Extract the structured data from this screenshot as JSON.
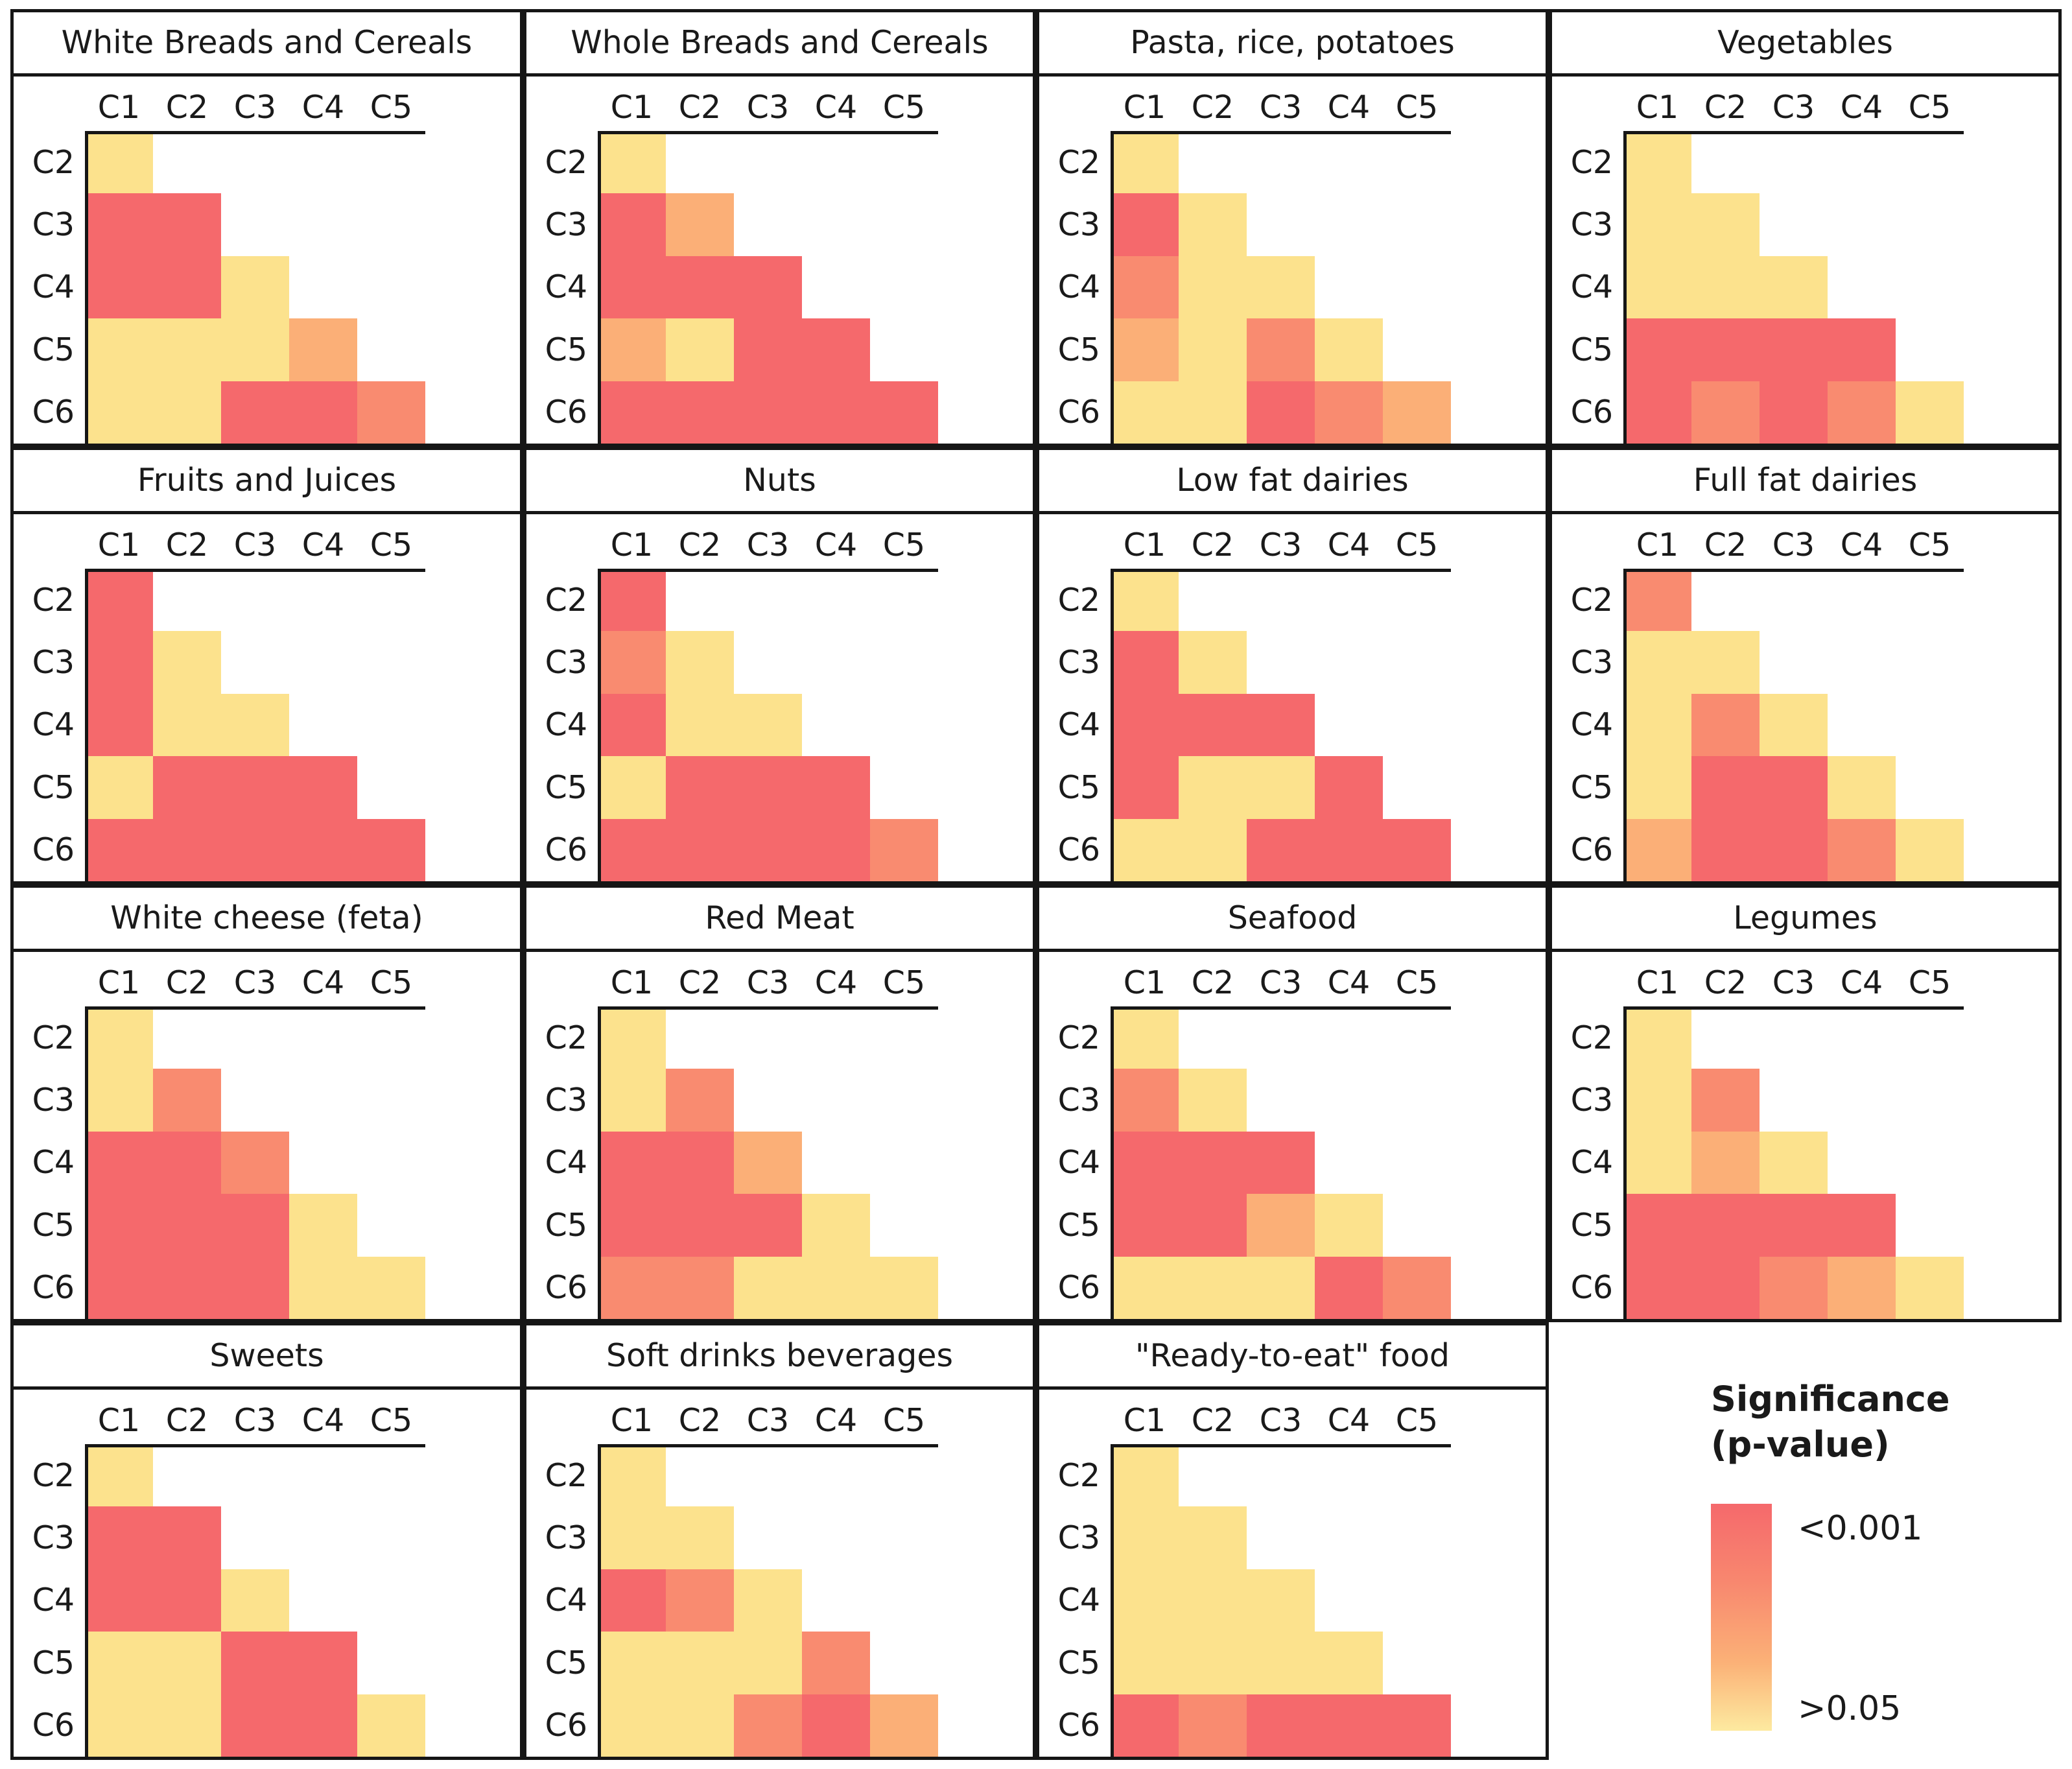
{
  "palette": {
    "r": "#f5696c",
    "s": "#f98b70",
    "o": "#fbaf77",
    "y": "#fce28d"
  },
  "legend": {
    "title_line1": "Significance",
    "title_line2": "(p-value)",
    "top_label": "<0.001",
    "bottom_label": ">0.05",
    "gradient_top_color": "#f5696c",
    "gradient_bottom_color": "#fdeaa0"
  },
  "chart_data": {
    "type": "heatmap",
    "layout": "4x4 grid of lower-triangular pairwise comparison matrices, legend in last slot",
    "columns": [
      "C1",
      "C2",
      "C3",
      "C4",
      "C5"
    ],
    "rows": [
      "C2",
      "C3",
      "C4",
      "C5",
      "C6"
    ],
    "value_legend": {
      "r": "p < 0.001 (strongest significance, red)",
      "s": "intermediate p, closer to 0.001 (salmon)",
      "o": "intermediate p, closer to 0.05 (orange)",
      "y": "p > 0.05 (not significant, pale yellow)"
    },
    "panels": [
      {
        "title": "White Breads and Cereals",
        "cells": [
          [
            "y"
          ],
          [
            "r",
            "r"
          ],
          [
            "r",
            "r",
            "y"
          ],
          [
            "y",
            "y",
            "y",
            "o"
          ],
          [
            "y",
            "y",
            "r",
            "r",
            "s"
          ]
        ]
      },
      {
        "title": "Whole Breads and Cereals",
        "cells": [
          [
            "y"
          ],
          [
            "r",
            "o"
          ],
          [
            "r",
            "r",
            "r"
          ],
          [
            "o",
            "y",
            "r",
            "r"
          ],
          [
            "r",
            "r",
            "r",
            "r",
            "r"
          ]
        ]
      },
      {
        "title": "Pasta, rice, potatoes",
        "cells": [
          [
            "y"
          ],
          [
            "r",
            "y"
          ],
          [
            "s",
            "y",
            "y"
          ],
          [
            "o",
            "y",
            "s",
            "y"
          ],
          [
            "y",
            "y",
            "r",
            "s",
            "o"
          ]
        ]
      },
      {
        "title": "Vegetables",
        "cells": [
          [
            "y"
          ],
          [
            "y",
            "y"
          ],
          [
            "y",
            "y",
            "y"
          ],
          [
            "r",
            "r",
            "r",
            "r"
          ],
          [
            "r",
            "s",
            "r",
            "s",
            "y"
          ]
        ]
      },
      {
        "title": "Fruits and Juices",
        "cells": [
          [
            "r"
          ],
          [
            "r",
            "y"
          ],
          [
            "r",
            "y",
            "y"
          ],
          [
            "y",
            "r",
            "r",
            "r"
          ],
          [
            "r",
            "r",
            "r",
            "r",
            "r"
          ]
        ]
      },
      {
        "title": "Nuts",
        "cells": [
          [
            "r"
          ],
          [
            "s",
            "y"
          ],
          [
            "r",
            "y",
            "y"
          ],
          [
            "y",
            "r",
            "r",
            "r"
          ],
          [
            "r",
            "r",
            "r",
            "r",
            "s"
          ]
        ]
      },
      {
        "title": "Low fat dairies",
        "cells": [
          [
            "y"
          ],
          [
            "r",
            "y"
          ],
          [
            "r",
            "r",
            "r"
          ],
          [
            "r",
            "y",
            "y",
            "r"
          ],
          [
            "y",
            "y",
            "r",
            "r",
            "r"
          ]
        ]
      },
      {
        "title": "Full fat dairies",
        "cells": [
          [
            "s"
          ],
          [
            "y",
            "y"
          ],
          [
            "y",
            "s",
            "y"
          ],
          [
            "y",
            "r",
            "r",
            "y"
          ],
          [
            "o",
            "r",
            "r",
            "s",
            "y"
          ]
        ]
      },
      {
        "title": "White cheese (feta)",
        "cells": [
          [
            "y"
          ],
          [
            "y",
            "s"
          ],
          [
            "r",
            "r",
            "s"
          ],
          [
            "r",
            "r",
            "r",
            "y"
          ],
          [
            "r",
            "r",
            "r",
            "y",
            "y"
          ]
        ]
      },
      {
        "title": "Red Meat",
        "cells": [
          [
            "y"
          ],
          [
            "y",
            "s"
          ],
          [
            "r",
            "r",
            "o"
          ],
          [
            "r",
            "r",
            "r",
            "y"
          ],
          [
            "s",
            "s",
            "y",
            "y",
            "y"
          ]
        ]
      },
      {
        "title": "Seafood",
        "cells": [
          [
            "y"
          ],
          [
            "s",
            "y"
          ],
          [
            "r",
            "r",
            "r"
          ],
          [
            "r",
            "r",
            "o",
            "y"
          ],
          [
            "y",
            "y",
            "y",
            "r",
            "s"
          ]
        ]
      },
      {
        "title": "Legumes",
        "cells": [
          [
            "y"
          ],
          [
            "y",
            "s"
          ],
          [
            "y",
            "o",
            "y"
          ],
          [
            "r",
            "r",
            "r",
            "r"
          ],
          [
            "r",
            "r",
            "s",
            "o",
            "y"
          ]
        ]
      },
      {
        "title": "Sweets",
        "cells": [
          [
            "y"
          ],
          [
            "r",
            "r"
          ],
          [
            "r",
            "r",
            "y"
          ],
          [
            "y",
            "y",
            "r",
            "r"
          ],
          [
            "y",
            "y",
            "r",
            "r",
            "y"
          ]
        ]
      },
      {
        "title": "Soft drinks beverages",
        "cells": [
          [
            "y"
          ],
          [
            "y",
            "y"
          ],
          [
            "r",
            "s",
            "y"
          ],
          [
            "y",
            "y",
            "y",
            "s"
          ],
          [
            "y",
            "y",
            "s",
            "r",
            "o"
          ]
        ]
      },
      {
        "title": "\"Ready-to-eat\" food",
        "cells": [
          [
            "y"
          ],
          [
            "y",
            "y"
          ],
          [
            "y",
            "y",
            "y"
          ],
          [
            "y",
            "y",
            "y",
            "y"
          ],
          [
            "r",
            "s",
            "r",
            "r",
            "r"
          ]
        ]
      }
    ],
    "colorbar": {
      "title": "Significance (p-value)",
      "top_label": "<0.001",
      "bottom_label": ">0.05",
      "orientation": "vertical",
      "top_color": "#f5696c",
      "bottom_color": "#fdeaa0"
    }
  }
}
